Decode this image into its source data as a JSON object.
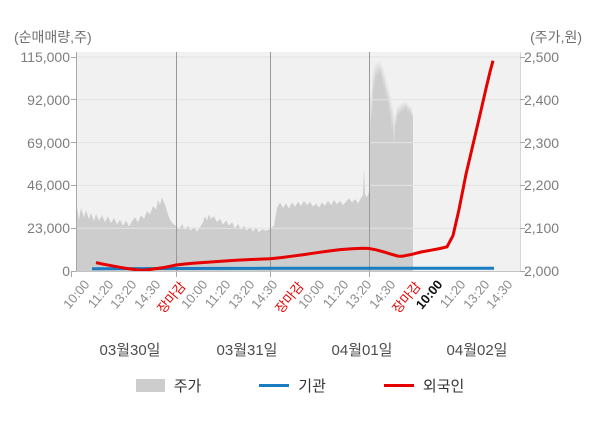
{
  "axes": {
    "left": {
      "title": "(순매매량,주)",
      "ticks": [
        "115,000",
        "92,000",
        "69,000",
        "46,000",
        "23,000",
        "0"
      ]
    },
    "right": {
      "title": "(주가,원)",
      "ticks": [
        "2,500",
        "2,400",
        "2,300",
        "2,200",
        "2,100",
        "2,000"
      ]
    }
  },
  "x_axis": {
    "days": [
      {
        "date": "03월30일",
        "times": [
          "10:00",
          "11:20",
          "13:20",
          "14:30",
          "장마감"
        ]
      },
      {
        "date": "03월31일",
        "times": [
          "10:00",
          "11:20",
          "13:20",
          "14:30",
          "장마감"
        ]
      },
      {
        "date": "04월01일",
        "times": [
          "10:00",
          "11:20",
          "13:20",
          "14:30",
          "장마감"
        ]
      },
      {
        "date": "04월02일",
        "times": [
          "10:00",
          "11:20",
          "13:20",
          "14:30"
        ]
      }
    ],
    "close_label": "장마감",
    "emphasis": {
      "day_index": 3,
      "time_index": 0
    }
  },
  "legend": [
    {
      "label": "주가",
      "type": "area",
      "color": "#cdcdcd"
    },
    {
      "label": "기관",
      "type": "line",
      "color": "#1a7cc1"
    },
    {
      "label": "외국인",
      "type": "line",
      "color": "#e60000"
    }
  ],
  "colors": {
    "plot_bg": "#f1f1f1",
    "h_grid": "#e3e3e3",
    "day_separator": "#999999",
    "price_area": "#cdcdcd",
    "institutions": "#1a7cc1",
    "foreigners": "#e60000"
  },
  "chart_data": {
    "type": "line+area",
    "left_axis": {
      "label": "(순매매량,주)",
      "range": [
        0,
        115000
      ],
      "unit": "주"
    },
    "right_axis": {
      "label": "(주가,원)",
      "range": [
        2000,
        2500
      ],
      "unit": "원"
    },
    "x_unit": "plot-x (time position, px 0-444 over 4 trading days)",
    "series": [
      {
        "name": "주가",
        "role": "price",
        "style": "area",
        "axis": "right",
        "points": [
          [
            0,
            2162
          ],
          [
            3,
            2120
          ],
          [
            5,
            2148
          ],
          [
            8,
            2125
          ],
          [
            10,
            2142
          ],
          [
            13,
            2120
          ],
          [
            15,
            2136
          ],
          [
            18,
            2116
          ],
          [
            20,
            2133
          ],
          [
            23,
            2118
          ],
          [
            26,
            2130
          ],
          [
            29,
            2114
          ],
          [
            32,
            2128
          ],
          [
            35,
            2112
          ],
          [
            38,
            2124
          ],
          [
            41,
            2108
          ],
          [
            44,
            2120
          ],
          [
            47,
            2106
          ],
          [
            50,
            2118
          ],
          [
            53,
            2104
          ],
          [
            56,
            2116
          ],
          [
            59,
            2126
          ],
          [
            62,
            2114
          ],
          [
            65,
            2130
          ],
          [
            68,
            2122
          ],
          [
            71,
            2140
          ],
          [
            74,
            2132
          ],
          [
            77,
            2152
          ],
          [
            80,
            2144
          ],
          [
            82,
            2166
          ],
          [
            84,
            2154
          ],
          [
            86,
            2172
          ],
          [
            88,
            2160
          ],
          [
            90,
            2148
          ],
          [
            92,
            2132
          ],
          [
            94,
            2120
          ],
          [
            97,
            2110
          ],
          [
            100,
            2106
          ],
          [
            103,
            2098
          ],
          [
            106,
            2110
          ],
          [
            109,
            2096
          ],
          [
            112,
            2106
          ],
          [
            115,
            2094
          ],
          [
            118,
            2104
          ],
          [
            121,
            2092
          ],
          [
            124,
            2102
          ],
          [
            127,
            2114
          ],
          [
            129,
            2128
          ],
          [
            131,
            2118
          ],
          [
            133,
            2132
          ],
          [
            135,
            2122
          ],
          [
            138,
            2128
          ],
          [
            141,
            2114
          ],
          [
            144,
            2122
          ],
          [
            147,
            2108
          ],
          [
            150,
            2118
          ],
          [
            153,
            2106
          ],
          [
            156,
            2114
          ],
          [
            159,
            2100
          ],
          [
            162,
            2110
          ],
          [
            165,
            2096
          ],
          [
            168,
            2106
          ],
          [
            171,
            2094
          ],
          [
            174,
            2104
          ],
          [
            177,
            2092
          ],
          [
            180,
            2102
          ],
          [
            183,
            2090
          ],
          [
            186,
            2098
          ],
          [
            190,
            2094
          ],
          [
            194,
            2098
          ],
          [
            198,
            2106
          ],
          [
            201,
            2148
          ],
          [
            204,
            2160
          ],
          [
            207,
            2148
          ],
          [
            210,
            2158
          ],
          [
            213,
            2146
          ],
          [
            216,
            2160
          ],
          [
            219,
            2150
          ],
          [
            222,
            2162
          ],
          [
            225,
            2152
          ],
          [
            228,
            2164
          ],
          [
            231,
            2154
          ],
          [
            234,
            2162
          ],
          [
            237,
            2150
          ],
          [
            240,
            2158
          ],
          [
            243,
            2148
          ],
          [
            246,
            2160
          ],
          [
            249,
            2152
          ],
          [
            252,
            2164
          ],
          [
            255,
            2154
          ],
          [
            258,
            2166
          ],
          [
            261,
            2156
          ],
          [
            264,
            2164
          ],
          [
            267,
            2154
          ],
          [
            270,
            2162
          ],
          [
            273,
            2170
          ],
          [
            276,
            2160
          ],
          [
            279,
            2168
          ],
          [
            282,
            2158
          ],
          [
            285,
            2170
          ],
          [
            287,
            2178
          ],
          [
            288,
            2240
          ],
          [
            289,
            2180
          ],
          [
            291,
            2172
          ],
          [
            293,
            2185
          ],
          [
            294,
            2300
          ],
          [
            295,
            2430
          ],
          [
            296,
            2360
          ],
          [
            297,
            2475
          ],
          [
            298,
            2420
          ],
          [
            299,
            2488
          ],
          [
            300,
            2450
          ],
          [
            301,
            2492
          ],
          [
            302,
            2455
          ],
          [
            303,
            2495
          ],
          [
            304,
            2460
          ],
          [
            305,
            2490
          ],
          [
            306,
            2445
          ],
          [
            307,
            2480
          ],
          [
            308,
            2425
          ],
          [
            309,
            2465
          ],
          [
            310,
            2405
          ],
          [
            311,
            2448
          ],
          [
            312,
            2390
          ],
          [
            313,
            2430
          ],
          [
            314,
            2360
          ],
          [
            315,
            2410
          ],
          [
            316,
            2330
          ],
          [
            317,
            2390
          ],
          [
            318,
            2296
          ],
          [
            319,
            2370
          ],
          [
            320,
            2340
          ],
          [
            321,
            2386
          ],
          [
            322,
            2362
          ],
          [
            323,
            2390
          ],
          [
            324,
            2368
          ],
          [
            325,
            2394
          ],
          [
            326,
            2372
          ],
          [
            327,
            2396
          ],
          [
            328,
            2376
          ],
          [
            329,
            2398
          ],
          [
            330,
            2378
          ],
          [
            331,
            2395
          ],
          [
            332,
            2372
          ],
          [
            333,
            2390
          ],
          [
            334,
            2368
          ],
          [
            335,
            2385
          ],
          [
            336,
            2360
          ],
          [
            337,
            2372
          ]
        ]
      },
      {
        "name": "기관",
        "role": "institutions",
        "style": "line",
        "axis": "left",
        "points": [
          [
            16,
            1200
          ],
          [
            60,
            1300
          ],
          [
            100,
            1350
          ],
          [
            150,
            1400
          ],
          [
            200,
            1450
          ],
          [
            250,
            1500
          ],
          [
            300,
            1500
          ],
          [
            350,
            1500
          ],
          [
            418,
            1500
          ]
        ]
      },
      {
        "name": "외국인",
        "role": "foreigners",
        "style": "line",
        "axis": "left",
        "points": [
          [
            20,
            4500
          ],
          [
            28,
            3600
          ],
          [
            36,
            2800
          ],
          [
            44,
            2000
          ],
          [
            52,
            1300
          ],
          [
            60,
            700
          ],
          [
            66,
            400
          ],
          [
            72,
            700
          ],
          [
            80,
            1300
          ],
          [
            88,
            1900
          ],
          [
            94,
            2500
          ],
          [
            100,
            3200
          ],
          [
            110,
            3800
          ],
          [
            120,
            4300
          ],
          [
            133,
            4800
          ],
          [
            147,
            5300
          ],
          [
            160,
            5800
          ],
          [
            175,
            6200
          ],
          [
            194,
            6600
          ],
          [
            205,
            7200
          ],
          [
            215,
            7900
          ],
          [
            228,
            8800
          ],
          [
            240,
            9800
          ],
          [
            252,
            10700
          ],
          [
            264,
            11500
          ],
          [
            276,
            12000
          ],
          [
            287,
            12200
          ],
          [
            293,
            12100
          ],
          [
            300,
            11400
          ],
          [
            308,
            10200
          ],
          [
            316,
            8900
          ],
          [
            322,
            8000
          ],
          [
            326,
            7900
          ],
          [
            336,
            9000
          ],
          [
            345,
            10200
          ],
          [
            355,
            11200
          ],
          [
            364,
            12100
          ],
          [
            371,
            13000
          ],
          [
            377,
            19000
          ],
          [
            383,
            33000
          ],
          [
            390,
            52000
          ],
          [
            397,
            68000
          ],
          [
            404,
            84000
          ],
          [
            410,
            98000
          ],
          [
            414,
            107000
          ],
          [
            417,
            113000
          ]
        ]
      }
    ],
    "day_separators_x": [
      100,
      194,
      293
    ],
    "grid": "horizontal gridlines every 23,000 (left) / 100원 (right); vertical separators at day closes",
    "legend_position": "bottom"
  }
}
